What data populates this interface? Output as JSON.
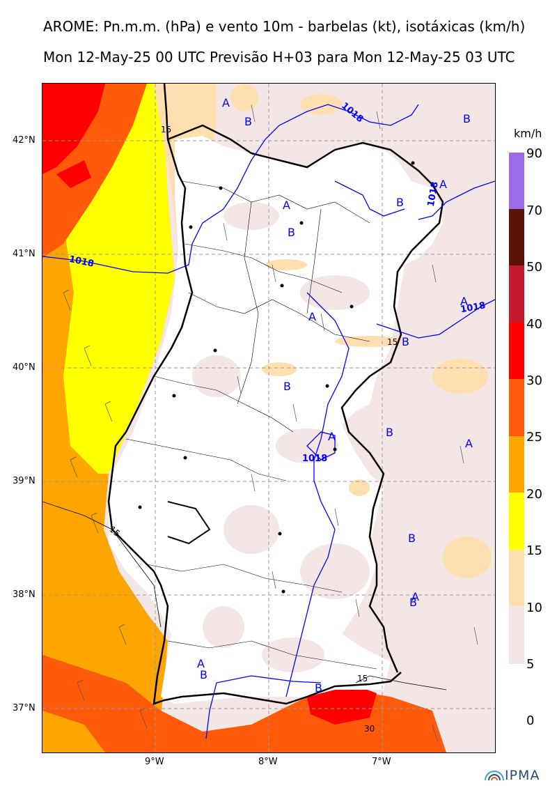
{
  "header": {
    "title_line1": "AROME: Pn.m.m. (hPa) e vento 10m - barbelas (kt), isotáxicas (km/h)",
    "title_line2": "Mon 12-May-25 00 UTC Previsão H+03 para Mon 12-May-25 03 UTC"
  },
  "axes": {
    "lat_labels": [
      "42°N",
      "41°N",
      "40°N",
      "39°N",
      "38°N",
      "37°N"
    ],
    "lon_labels": [
      "9°W",
      "8°W",
      "7°W"
    ]
  },
  "colorbar": {
    "unit": "km/h",
    "levels": [
      "90",
      "70",
      "50",
      "40",
      "30",
      "25",
      "20",
      "15",
      "10",
      "5",
      "0"
    ],
    "colors": [
      "#9b6bea",
      "#5e1207",
      "#c41a2b",
      "#ff0000",
      "#ff5a0a",
      "#ffa500",
      "#ffff00",
      "#ffdfb0",
      "#f5e6e6"
    ]
  },
  "map": {
    "isobar_labels": [
      "1018",
      "1018",
      "1018",
      "1018",
      "1018"
    ],
    "isotach_labels": [
      "15",
      "15",
      "15",
      "15",
      "30"
    ],
    "high_markers": [
      "A",
      "A",
      "A",
      "A",
      "A",
      "A",
      "A",
      "A",
      "A"
    ],
    "low_markers": [
      "B",
      "B",
      "B",
      "B",
      "B",
      "B",
      "B",
      "B",
      "B",
      "B",
      "B"
    ],
    "colors": {
      "isobar": "#0000ff",
      "coast": "#000000"
    }
  },
  "footer": {
    "logo_text": "IPMA"
  }
}
